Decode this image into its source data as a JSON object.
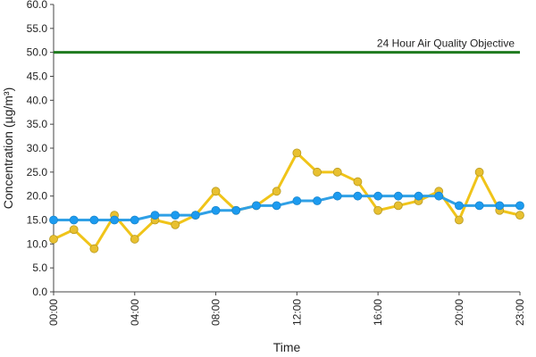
{
  "chart_data": {
    "type": "line",
    "title": "",
    "xlabel": "Time",
    "ylabel": "Concentration (µg/m³)",
    "ylim": [
      0,
      60
    ],
    "y_ticks": [
      "0.0",
      "5.0",
      "10.0",
      "15.0",
      "20.0",
      "25.0",
      "30.0",
      "35.0",
      "40.0",
      "45.0",
      "50.0",
      "55.0",
      "60.0"
    ],
    "x": [
      0,
      1,
      2,
      3,
      4,
      5,
      6,
      7,
      8,
      9,
      10,
      11,
      12,
      13,
      14,
      15,
      16,
      17,
      18,
      19,
      20,
      21,
      22,
      23
    ],
    "x_ticks": [
      {
        "x": 0,
        "label": "00:00"
      },
      {
        "x": 4,
        "label": "04:00"
      },
      {
        "x": 8,
        "label": "08:00"
      },
      {
        "x": 12,
        "label": "12:00"
      },
      {
        "x": 16,
        "label": "16:00"
      },
      {
        "x": 20,
        "label": "20:00"
      },
      {
        "x": 23,
        "label": "23:00"
      }
    ],
    "grid": false,
    "series": [
      {
        "color": "#f0c419",
        "marker_color": "#e8c030",
        "values": [
          11,
          13,
          9,
          16,
          11,
          15,
          14,
          16,
          21,
          17,
          18,
          21,
          29,
          25,
          25,
          23,
          17,
          18,
          19,
          21,
          15,
          25,
          17,
          16
        ]
      },
      {
        "color": "#2fa0e6",
        "marker_color": "#1c9bf0",
        "values": [
          15,
          15,
          15,
          15,
          15,
          16,
          16,
          16,
          17,
          17,
          18,
          18,
          19,
          19,
          20,
          20,
          20,
          20,
          20,
          20,
          18,
          18,
          18,
          18
        ]
      }
    ],
    "reference_line": {
      "value": 50,
      "label": "24 Hour Air Quality Objective",
      "color": "#1f7a1f"
    }
  }
}
